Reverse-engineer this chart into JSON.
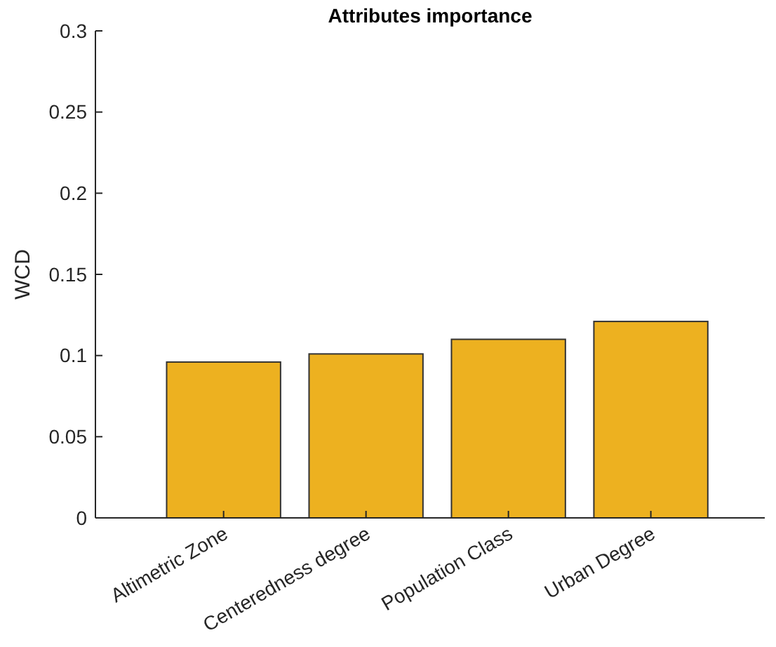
{
  "chart_data": {
    "type": "bar",
    "title": "Attributes importance",
    "ylabel": "WCD",
    "categories": [
      "Altimetric Zone",
      "Centeredness degree",
      "Population Class",
      "Urban Degree"
    ],
    "values": [
      0.096,
      0.101,
      0.11,
      0.121
    ],
    "color": "#edb120",
    "ylim": [
      0,
      0.3
    ],
    "yticks": [
      0,
      0.05,
      0.1,
      0.15,
      0.2,
      0.25,
      0.3
    ],
    "grid": false
  }
}
